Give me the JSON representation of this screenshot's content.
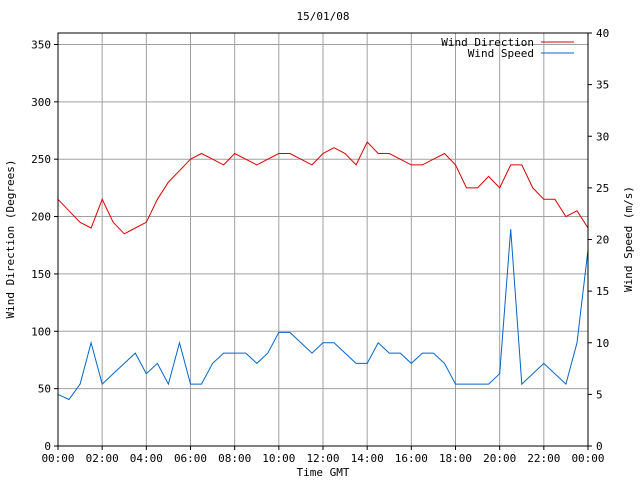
{
  "chart_data": {
    "type": "line",
    "title": "15/01/08",
    "xlabel": "Time GMT",
    "ylabel_left": "Wind Direction (Degrees)",
    "ylabel_right": "Wind Speed (m/s)",
    "x_range_hours": [
      0,
      24
    ],
    "x_ticks": [
      "00:00",
      "02:00",
      "04:00",
      "06:00",
      "08:00",
      "10:00",
      "12:00",
      "14:00",
      "16:00",
      "18:00",
      "20:00",
      "22:00",
      "00:00"
    ],
    "y_left": {
      "min": 0,
      "max": 360,
      "ticks": [
        0,
        50,
        100,
        150,
        200,
        250,
        300,
        350
      ]
    },
    "y_right": {
      "min": 0,
      "max": 40,
      "ticks": [
        0,
        5,
        10,
        15,
        20,
        25,
        30,
        35,
        40
      ]
    },
    "grid": true,
    "legend_position": "top-right",
    "series": [
      {
        "name": "Wind Direction",
        "axis": "left",
        "color": "#dd0000",
        "x": [
          0,
          0.5,
          1,
          1.5,
          2,
          2.5,
          3,
          3.5,
          4,
          4.5,
          5,
          5.5,
          6,
          6.5,
          7,
          7.5,
          8,
          8.5,
          9,
          9.5,
          10,
          10.5,
          11,
          11.5,
          12,
          12.5,
          13,
          13.5,
          14,
          14.5,
          15,
          15.5,
          16,
          16.5,
          17,
          17.5,
          18,
          18.5,
          19,
          19.5,
          20,
          20.5,
          21,
          21.5,
          22,
          22.5,
          23,
          23.5,
          24
        ],
        "y": [
          215,
          205,
          195,
          190,
          215,
          195,
          185,
          190,
          195,
          215,
          230,
          240,
          250,
          255,
          250,
          245,
          255,
          250,
          245,
          250,
          255,
          255,
          250,
          245,
          255,
          260,
          255,
          245,
          265,
          255,
          255,
          250,
          245,
          245,
          250,
          255,
          245,
          225,
          225,
          235,
          225,
          245,
          245,
          225,
          215,
          215,
          200,
          205,
          190
        ]
      },
      {
        "name": "Wind Speed",
        "axis": "right",
        "color": "#0066cc",
        "x": [
          0,
          0.5,
          1,
          1.5,
          2,
          2.5,
          3,
          3.5,
          4,
          4.5,
          5,
          5.5,
          6,
          6.5,
          7,
          7.5,
          8,
          8.5,
          9,
          9.5,
          10,
          10.5,
          11,
          11.5,
          12,
          12.5,
          13,
          13.5,
          14,
          14.5,
          15,
          15.5,
          16,
          16.5,
          17,
          17.5,
          18,
          18.5,
          19,
          19.5,
          20,
          20.5,
          21,
          21.5,
          22,
          22.5,
          23,
          23.5,
          24
        ],
        "y": [
          5,
          4.5,
          6,
          10,
          6,
          7,
          8,
          9,
          7,
          8,
          6,
          10,
          6,
          6,
          8,
          9,
          9,
          9,
          8,
          9,
          11,
          11,
          10,
          9,
          10,
          10,
          9,
          8,
          8,
          10,
          9,
          9,
          8,
          9,
          9,
          8,
          6,
          6,
          6,
          6,
          7,
          21,
          6,
          7,
          8,
          7,
          6,
          10,
          19
        ]
      }
    ]
  }
}
